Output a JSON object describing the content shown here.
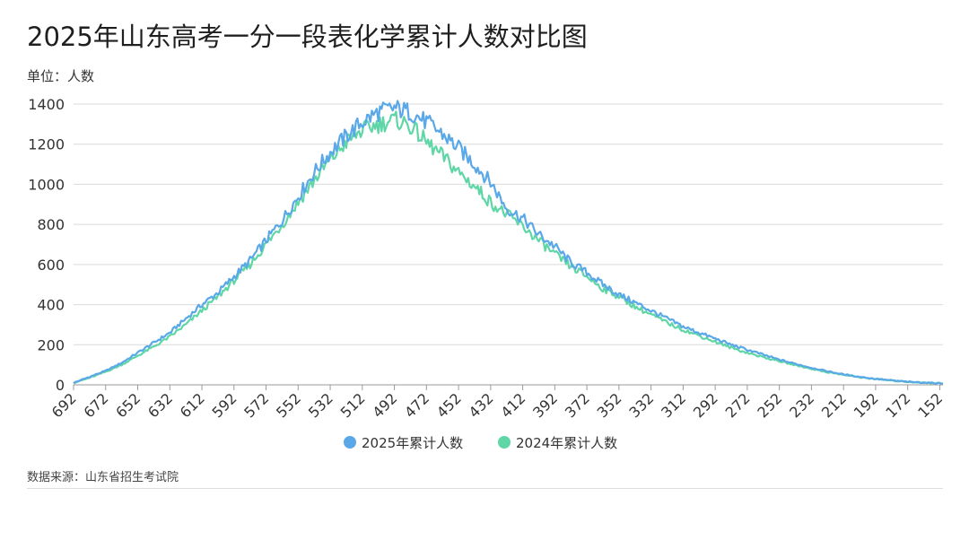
{
  "colors": {
    "series_2025": "#5aa8e8",
    "series_2024": "#5fd6a6",
    "grid": "#d9d9d9",
    "axis": "#9a9a9a"
  },
  "chart_data": {
    "type": "line",
    "title": "2025年山东高考一分一段表化学累计人数对比图",
    "unit_label": "单位：人数",
    "source": "数据来源：山东省招生考试院",
    "xlabel": "",
    "ylabel": "",
    "x_range": [
      692,
      150
    ],
    "x_tick_labels": [
      "692",
      "672",
      "652",
      "632",
      "612",
      "592",
      "572",
      "552",
      "532",
      "512",
      "492",
      "472",
      "452",
      "432",
      "412",
      "392",
      "372",
      "352",
      "332",
      "312",
      "292",
      "272",
      "252",
      "232",
      "212",
      "192",
      "172",
      "152"
    ],
    "ylim": [
      0,
      1400
    ],
    "y_ticks": [
      0,
      200,
      400,
      600,
      800,
      1000,
      1200,
      1400
    ],
    "grid": true,
    "legend_position": "bottom-center",
    "series": [
      {
        "name": "2025年累计人数",
        "x": [
          692,
          682,
          672,
          662,
          652,
          642,
          632,
          622,
          612,
          602,
          592,
          582,
          572,
          562,
          552,
          542,
          532,
          522,
          512,
          502,
          492,
          487,
          482,
          472,
          462,
          452,
          442,
          432,
          422,
          412,
          402,
          392,
          382,
          372,
          362,
          352,
          342,
          332,
          322,
          312,
          302,
          292,
          282,
          272,
          262,
          252,
          242,
          232,
          222,
          212,
          202,
          192,
          182,
          172,
          162,
          152,
          150
        ],
        "y": [
          10,
          40,
          70,
          110,
          160,
          210,
          260,
          330,
          400,
          460,
          540,
          620,
          720,
          820,
          940,
          1060,
          1160,
          1240,
          1310,
          1360,
          1380,
          1370,
          1360,
          1310,
          1250,
          1180,
          1100,
          1010,
          880,
          830,
          750,
          690,
          610,
          560,
          500,
          450,
          410,
          370,
          330,
          290,
          260,
          230,
          200,
          175,
          150,
          125,
          105,
          85,
          68,
          52,
          40,
          30,
          22,
          15,
          11,
          8,
          7
        ]
      },
      {
        "name": "2024年累计人数",
        "x": [
          692,
          682,
          672,
          662,
          652,
          642,
          632,
          622,
          612,
          602,
          592,
          582,
          572,
          562,
          552,
          542,
          532,
          522,
          512,
          502,
          492,
          487,
          482,
          472,
          462,
          452,
          442,
          432,
          422,
          412,
          402,
          392,
          382,
          372,
          362,
          352,
          342,
          332,
          322,
          312,
          302,
          292,
          282,
          272,
          262,
          252,
          242,
          232,
          222,
          212,
          202,
          192,
          182,
          172,
          162,
          152,
          150
        ],
        "y": [
          10,
          35,
          65,
          100,
          145,
          190,
          240,
          300,
          370,
          440,
          520,
          600,
          700,
          800,
          910,
          1020,
          1120,
          1210,
          1270,
          1300,
          1320,
          1310,
          1290,
          1210,
          1140,
          1060,
          990,
          910,
          850,
          790,
          720,
          650,
          590,
          540,
          480,
          440,
          390,
          350,
          310,
          275,
          245,
          215,
          185,
          160,
          138,
          118,
          98,
          80,
          63,
          50,
          38,
          29,
          21,
          15,
          11,
          8,
          7
        ]
      }
    ]
  }
}
